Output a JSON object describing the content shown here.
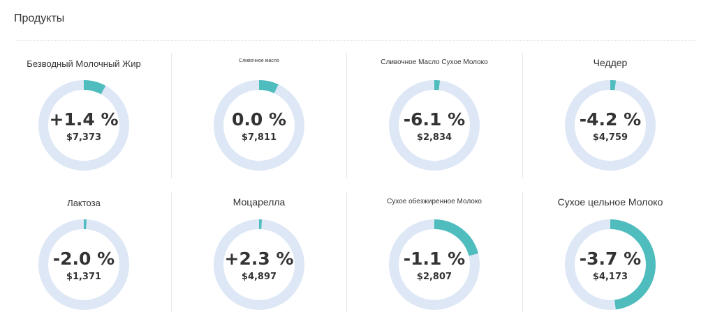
{
  "header": {
    "title": "Продукты"
  },
  "colors": {
    "track": "#dde7f5",
    "accent": "#4fbdbd"
  },
  "products": [
    {
      "name": "Безводный Молочный Жир",
      "change": "+1.4 %",
      "price": "$7,373",
      "share": 0.08
    },
    {
      "name": "Сливочное масло",
      "change": "0.0  %",
      "price": "$7,811",
      "share": 0.07
    },
    {
      "name": "Сливочное Масло Сухое Молоко",
      "change": "-6.1 %",
      "price": "$2,834",
      "share": 0.02
    },
    {
      "name": "Чеддер",
      "change": "-4.2 %",
      "price": "$4,759",
      "share": 0.02
    },
    {
      "name": "Лактоза",
      "change": "-2.0 %",
      "price": "$1,371",
      "share": 0.01
    },
    {
      "name": "Моцарелла",
      "change": "+2.3 %",
      "price": "$4,897",
      "share": 0.01
    },
    {
      "name": "Сухое обезжиренное Молоко",
      "change": "-1.1 %",
      "price": "$2,807",
      "share": 0.21
    },
    {
      "name": "Сухое цельное Молоко",
      "change": "-3.7 %",
      "price": "$4,173",
      "share": 0.48
    }
  ]
}
